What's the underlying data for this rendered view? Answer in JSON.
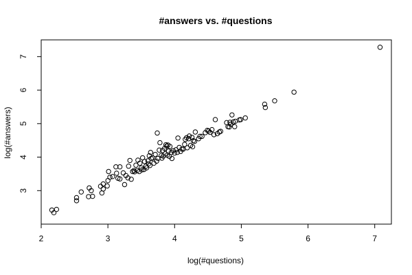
{
  "chart_data": {
    "type": "scatter",
    "title": "#answers vs. #questions",
    "xlabel": "log(#questions)",
    "ylabel": "log(#answers)",
    "xlim": [
      2,
      7.25
    ],
    "ylim": [
      2.0,
      7.5
    ],
    "x_ticks": [
      2,
      3,
      4,
      5,
      6,
      7
    ],
    "y_ticks": [
      3,
      4,
      5,
      6,
      7
    ],
    "grid": false,
    "legend": "none",
    "marker": "open-circle",
    "points": [
      [
        2.16,
        2.42
      ],
      [
        2.19,
        2.34
      ],
      [
        2.23,
        2.44
      ],
      [
        2.53,
        2.7
      ],
      [
        2.53,
        2.79
      ],
      [
        2.6,
        2.96
      ],
      [
        2.71,
        2.82
      ],
      [
        2.72,
        3.08
      ],
      [
        2.77,
        2.83
      ],
      [
        2.75,
        3.0
      ],
      [
        2.89,
        3.13
      ],
      [
        2.91,
        2.93
      ],
      [
        2.93,
        3.2
      ],
      [
        2.93,
        3.05
      ],
      [
        2.99,
        3.14
      ],
      [
        3.0,
        3.3
      ],
      [
        3.01,
        3.57
      ],
      [
        3.03,
        3.4
      ],
      [
        3.07,
        3.42
      ],
      [
        3.12,
        3.71
      ],
      [
        3.13,
        3.52
      ],
      [
        3.15,
        3.37
      ],
      [
        3.18,
        3.35
      ],
      [
        3.18,
        3.71
      ],
      [
        3.23,
        3.53
      ],
      [
        3.25,
        3.18
      ],
      [
        3.27,
        3.45
      ],
      [
        3.3,
        3.38
      ],
      [
        3.31,
        3.73
      ],
      [
        3.33,
        3.9
      ],
      [
        3.35,
        3.34
      ],
      [
        3.37,
        3.57
      ],
      [
        3.39,
        3.6
      ],
      [
        3.4,
        3.56
      ],
      [
        3.42,
        3.76
      ],
      [
        3.44,
        3.6
      ],
      [
        3.45,
        3.91
      ],
      [
        3.47,
        3.57
      ],
      [
        3.48,
        3.82
      ],
      [
        3.5,
        3.68
      ],
      [
        3.51,
        3.62
      ],
      [
        3.52,
        3.98
      ],
      [
        3.54,
        3.63
      ],
      [
        3.55,
        3.87
      ],
      [
        3.57,
        3.73
      ],
      [
        3.58,
        3.68
      ],
      [
        3.6,
        3.89
      ],
      [
        3.61,
        3.8
      ],
      [
        3.62,
        4.04
      ],
      [
        3.63,
        3.75
      ],
      [
        3.64,
        4.14
      ],
      [
        3.65,
        3.96
      ],
      [
        3.67,
        3.98
      ],
      [
        3.69,
        3.82
      ],
      [
        3.71,
        4.08
      ],
      [
        3.73,
        3.88
      ],
      [
        3.74,
        4.72
      ],
      [
        3.75,
        3.96
      ],
      [
        3.77,
        4.21
      ],
      [
        3.78,
        4.43
      ],
      [
        3.8,
        4.05
      ],
      [
        3.81,
        3.97
      ],
      [
        3.82,
        4.2
      ],
      [
        3.83,
        4.03
      ],
      [
        3.85,
        4.26
      ],
      [
        3.86,
        4.1
      ],
      [
        3.87,
        4.37
      ],
      [
        3.88,
        4.33
      ],
      [
        3.89,
        4.06
      ],
      [
        3.9,
        4.36
      ],
      [
        3.91,
        4.18
      ],
      [
        3.92,
        4.02
      ],
      [
        3.93,
        4.32
      ],
      [
        3.95,
        4.14
      ],
      [
        3.96,
        3.96
      ],
      [
        3.98,
        4.19
      ],
      [
        4.0,
        4.12
      ],
      [
        4.02,
        4.22
      ],
      [
        4.04,
        4.14
      ],
      [
        4.05,
        4.57
      ],
      [
        4.07,
        4.29
      ],
      [
        4.09,
        4.17
      ],
      [
        4.11,
        4.24
      ],
      [
        4.13,
        4.24
      ],
      [
        4.15,
        4.38
      ],
      [
        4.16,
        4.53
      ],
      [
        4.18,
        4.58
      ],
      [
        4.19,
        4.28
      ],
      [
        4.21,
        4.55
      ],
      [
        4.22,
        4.63
      ],
      [
        4.24,
        4.35
      ],
      [
        4.26,
        4.59
      ],
      [
        4.27,
        4.31
      ],
      [
        4.28,
        4.49
      ],
      [
        4.3,
        4.47
      ],
      [
        4.31,
        4.75
      ],
      [
        4.36,
        4.55
      ],
      [
        4.38,
        4.62
      ],
      [
        4.41,
        4.62
      ],
      [
        4.46,
        4.73
      ],
      [
        4.49,
        4.8
      ],
      [
        4.51,
        4.78
      ],
      [
        4.53,
        4.74
      ],
      [
        4.56,
        4.82
      ],
      [
        4.59,
        4.67
      ],
      [
        4.61,
        5.12
      ],
      [
        4.64,
        4.7
      ],
      [
        4.67,
        4.75
      ],
      [
        4.69,
        4.77
      ],
      [
        4.78,
        5.03
      ],
      [
        4.8,
        4.91
      ],
      [
        4.82,
        4.9
      ],
      [
        4.83,
        5.04
      ],
      [
        4.84,
        4.98
      ],
      [
        4.86,
        5.26
      ],
      [
        4.88,
        5.05
      ],
      [
        4.9,
        4.91
      ],
      [
        4.91,
        5.07
      ],
      [
        4.97,
        5.11
      ],
      [
        4.99,
        5.12
      ],
      [
        5.06,
        5.17
      ],
      [
        5.35,
        5.58
      ],
      [
        5.36,
        5.48
      ],
      [
        5.5,
        5.68
      ],
      [
        5.79,
        5.94
      ],
      [
        7.08,
        7.28
      ]
    ]
  }
}
